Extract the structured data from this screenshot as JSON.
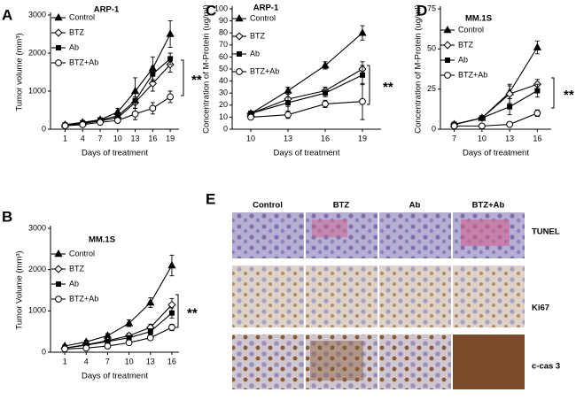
{
  "chart_data": [
    {
      "type": "line",
      "panel": "A",
      "title": "ARP-1",
      "x_label": "Days of treatment",
      "y_label": "Tumor volume (mm³)",
      "x": [
        1,
        4,
        7,
        10,
        13,
        16,
        19
      ],
      "xlim": [
        -1.5,
        20.5
      ],
      "xticks": [
        1,
        4,
        7,
        10,
        13,
        16,
        19
      ],
      "ylim": [
        0,
        3000
      ],
      "yticks": [
        0,
        1000,
        2000,
        3000
      ],
      "annotation": "**",
      "series": [
        {
          "name": "Control",
          "color": "#000000",
          "marker": "triangle",
          "values": [
            120,
            180,
            250,
            450,
            1000,
            1600,
            2500
          ],
          "errors": [
            30,
            30,
            50,
            100,
            350,
            300,
            350
          ]
        },
        {
          "name": "BTZ",
          "color": "#000000",
          "marker": "diamond",
          "values": [
            100,
            150,
            220,
            300,
            700,
            1200,
            1700
          ],
          "errors": [
            20,
            30,
            40,
            60,
            150,
            200,
            200
          ]
        },
        {
          "name": "Ab",
          "color": "#000000",
          "marker": "square",
          "values": [
            110,
            170,
            240,
            350,
            750,
            1450,
            1850
          ],
          "errors": [
            20,
            30,
            40,
            80,
            200,
            200,
            150
          ]
        },
        {
          "name": "BTZ+Ab",
          "color": "#000000",
          "marker": "circle",
          "values": [
            90,
            120,
            180,
            230,
            400,
            550,
            850
          ],
          "errors": [
            20,
            20,
            30,
            50,
            150,
            150,
            150
          ]
        }
      ]
    },
    {
      "type": "line",
      "panel": "C",
      "title": "ARP-1",
      "x_label": "Days of treatment",
      "y_label": "Concentration of M-Protein (ug/ml)",
      "x": [
        10,
        13,
        16,
        19
      ],
      "xlim": [
        8.5,
        20.5
      ],
      "xticks": [
        10,
        13,
        16,
        19
      ],
      "ylim": [
        0,
        100
      ],
      "yticks": [
        0,
        10,
        20,
        30,
        40,
        50,
        60,
        70,
        80,
        90,
        100
      ],
      "annotation": "**",
      "series": [
        {
          "name": "Control",
          "color": "#000000",
          "marker": "triangle",
          "values": [
            13,
            32,
            53,
            80
          ],
          "errors": [
            2,
            3,
            3,
            6
          ]
        },
        {
          "name": "BTZ",
          "color": "#000000",
          "marker": "diamond",
          "values": [
            13,
            25,
            32,
            50
          ],
          "errors": [
            2,
            6,
            3,
            6
          ]
        },
        {
          "name": "Ab",
          "color": "#000000",
          "marker": "square",
          "values": [
            13,
            22,
            30,
            45
          ],
          "errors": [
            2,
            10,
            3,
            8
          ]
        },
        {
          "name": "BTZ+Ab",
          "color": "#000000",
          "marker": "circle",
          "values": [
            10,
            12,
            21,
            23
          ],
          "errors": [
            2,
            3,
            3,
            15
          ]
        }
      ]
    },
    {
      "type": "line",
      "panel": "D",
      "title": "MM.1S",
      "x_label": "Days of treatment",
      "y_label": "Concentration of M-Protein (ug/ml)",
      "x": [
        7,
        10,
        13,
        16
      ],
      "xlim": [
        5.5,
        17.5
      ],
      "xticks": [
        7,
        10,
        13,
        16
      ],
      "ylim": [
        0,
        75
      ],
      "yticks": [
        0,
        25,
        50,
        75
      ],
      "annotation": "**",
      "series": [
        {
          "name": "Control",
          "color": "#000000",
          "marker": "triangle",
          "values": [
            3,
            7,
            23,
            51
          ],
          "errors": [
            1,
            1,
            4,
            4
          ]
        },
        {
          "name": "BTZ",
          "color": "#000000",
          "marker": "diamond",
          "values": [
            3,
            7,
            22,
            28
          ],
          "errors": [
            1,
            1,
            6,
            3
          ]
        },
        {
          "name": "Ab",
          "color": "#000000",
          "marker": "square",
          "values": [
            3,
            7,
            14,
            24
          ],
          "errors": [
            1,
            1,
            5,
            4
          ]
        },
        {
          "name": "BTZ+Ab",
          "color": "#000000",
          "marker": "circle",
          "values": [
            2,
            2,
            3,
            10
          ],
          "errors": [
            1,
            1,
            1,
            2
          ]
        }
      ]
    },
    {
      "type": "line",
      "panel": "B",
      "title": "MM.1S",
      "x_label": "Days of treatment",
      "y_label": "Tumor Volume (mm³)",
      "x": [
        1,
        4,
        7,
        10,
        13,
        16
      ],
      "xlim": [
        -1,
        17
      ],
      "xticks": [
        1,
        4,
        7,
        10,
        13,
        16
      ],
      "ylim": [
        0,
        3000
      ],
      "yticks": [
        0,
        1000,
        2000,
        3000
      ],
      "annotation": "**",
      "series": [
        {
          "name": "Control",
          "color": "#000000",
          "marker": "triangle",
          "values": [
            150,
            250,
            400,
            700,
            1200,
            2100
          ],
          "errors": [
            30,
            40,
            50,
            80,
            120,
            250
          ]
        },
        {
          "name": "BTZ",
          "color": "#000000",
          "marker": "diamond",
          "values": [
            100,
            180,
            280,
            400,
            600,
            1150
          ],
          "errors": [
            20,
            30,
            40,
            60,
            80,
            150
          ]
        },
        {
          "name": "Ab",
          "color": "#000000",
          "marker": "square",
          "values": [
            100,
            170,
            260,
            350,
            500,
            950
          ],
          "errors": [
            20,
            30,
            40,
            50,
            70,
            120
          ]
        },
        {
          "name": "BTZ+Ab",
          "color": "#000000",
          "marker": "circle",
          "values": [
            80,
            100,
            150,
            230,
            350,
            600
          ],
          "errors": [
            20,
            20,
            30,
            40,
            50,
            80
          ]
        }
      ]
    }
  ],
  "image_panel": {
    "panel": "E",
    "columns": [
      "Control",
      "BTZ",
      "Ab",
      "BTZ+Ab"
    ],
    "rows": [
      "TUNEL",
      "Ki67",
      "c-cas 3"
    ]
  }
}
